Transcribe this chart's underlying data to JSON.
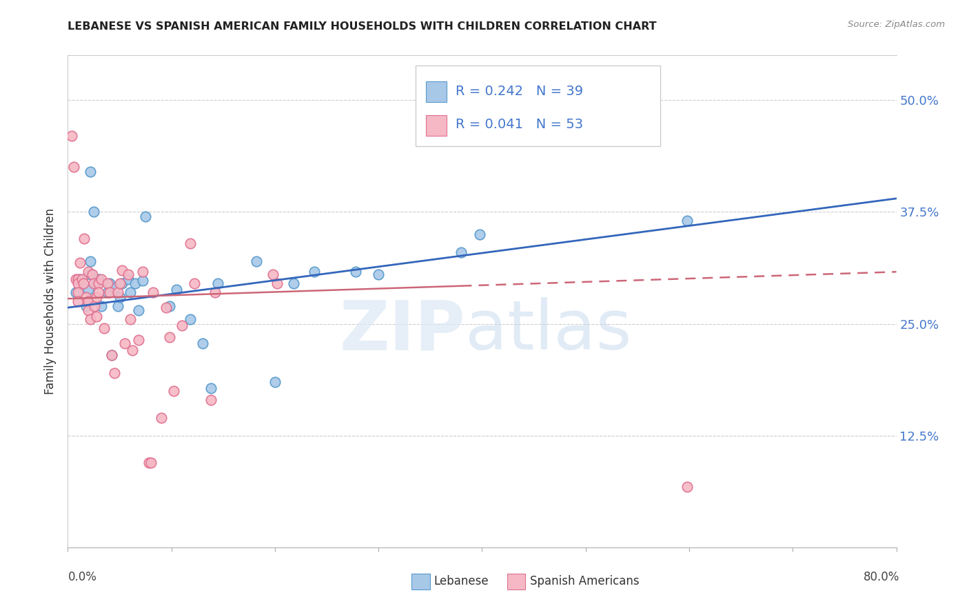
{
  "title": "LEBANESE VS SPANISH AMERICAN FAMILY HOUSEHOLDS WITH CHILDREN CORRELATION CHART",
  "source": "Source: ZipAtlas.com",
  "ylabel": "Family Households with Children",
  "yticks": [
    "50.0%",
    "37.5%",
    "25.0%",
    "12.5%"
  ],
  "ytick_values": [
    0.5,
    0.375,
    0.25,
    0.125
  ],
  "xrange": [
    0.0,
    0.8
  ],
  "yrange": [
    0.0,
    0.55
  ],
  "legend_label_blue": "Lebanese",
  "legend_label_pink": "Spanish Americans",
  "blue_fill": "#a8c8e8",
  "blue_edge": "#5599cc",
  "pink_fill": "#f5b8c4",
  "pink_edge": "#e07090",
  "blue_line_color": "#3366bb",
  "pink_line_color": "#cc6677",
  "ytick_color": "#4477cc",
  "watermark_zip_color": "#dce8f5",
  "watermark_atlas_color": "#c5d8ee",
  "blue_points_x": [
    0.008,
    0.012,
    0.018,
    0.02,
    0.022,
    0.022,
    0.022,
    0.025,
    0.028,
    0.03,
    0.032,
    0.038,
    0.04,
    0.042,
    0.045,
    0.048,
    0.05,
    0.052,
    0.058,
    0.06,
    0.065,
    0.068,
    0.072,
    0.075,
    0.098,
    0.105,
    0.118,
    0.13,
    0.138,
    0.145,
    0.182,
    0.2,
    0.218,
    0.238,
    0.278,
    0.3,
    0.38,
    0.398,
    0.598
  ],
  "blue_points_y": [
    0.285,
    0.3,
    0.27,
    0.288,
    0.305,
    0.32,
    0.42,
    0.375,
    0.295,
    0.3,
    0.27,
    0.285,
    0.295,
    0.215,
    0.29,
    0.27,
    0.28,
    0.295,
    0.3,
    0.285,
    0.295,
    0.265,
    0.298,
    0.37,
    0.27,
    0.288,
    0.255,
    0.228,
    0.178,
    0.295,
    0.32,
    0.185,
    0.295,
    0.308,
    0.308,
    0.305,
    0.33,
    0.35,
    0.365
  ],
  "pink_points_x": [
    0.004,
    0.006,
    0.008,
    0.01,
    0.01,
    0.01,
    0.01,
    0.012,
    0.014,
    0.015,
    0.016,
    0.018,
    0.02,
    0.02,
    0.02,
    0.022,
    0.024,
    0.025,
    0.026,
    0.028,
    0.028,
    0.03,
    0.03,
    0.032,
    0.035,
    0.038,
    0.04,
    0.042,
    0.045,
    0.048,
    0.05,
    0.052,
    0.055,
    0.058,
    0.06,
    0.062,
    0.068,
    0.072,
    0.078,
    0.08,
    0.082,
    0.09,
    0.095,
    0.098,
    0.102,
    0.11,
    0.118,
    0.122,
    0.138,
    0.142,
    0.198,
    0.202,
    0.598
  ],
  "pink_points_y": [
    0.46,
    0.425,
    0.3,
    0.3,
    0.295,
    0.285,
    0.275,
    0.318,
    0.3,
    0.295,
    0.345,
    0.28,
    0.308,
    0.275,
    0.265,
    0.255,
    0.305,
    0.295,
    0.27,
    0.258,
    0.28,
    0.295,
    0.285,
    0.3,
    0.245,
    0.295,
    0.285,
    0.215,
    0.195,
    0.285,
    0.295,
    0.31,
    0.228,
    0.305,
    0.255,
    0.22,
    0.232,
    0.308,
    0.095,
    0.095,
    0.285,
    0.145,
    0.268,
    0.235,
    0.175,
    0.248,
    0.34,
    0.295,
    0.165,
    0.285,
    0.305,
    0.295,
    0.068
  ],
  "blue_trendline_x": [
    0.0,
    0.8
  ],
  "blue_trendline_y": [
    0.268,
    0.39
  ],
  "pink_trendline_x": [
    0.0,
    0.8
  ],
  "pink_trendline_y": [
    0.278,
    0.308
  ]
}
